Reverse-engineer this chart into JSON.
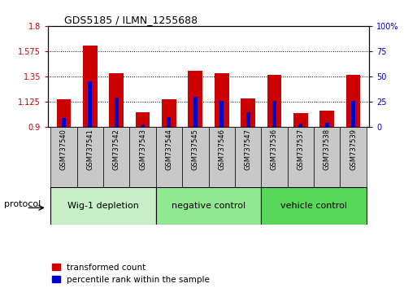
{
  "title": "GDS5185 / ILMN_1255688",
  "samples": [
    "GSM737540",
    "GSM737541",
    "GSM737542",
    "GSM737543",
    "GSM737544",
    "GSM737545",
    "GSM737546",
    "GSM737547",
    "GSM737536",
    "GSM737537",
    "GSM737538",
    "GSM737539"
  ],
  "red_values": [
    1.145,
    1.625,
    1.38,
    1.03,
    1.145,
    1.4,
    1.375,
    1.155,
    1.36,
    1.025,
    1.04,
    1.36
  ],
  "blue_values": [
    0.09,
    0.45,
    0.29,
    0.02,
    0.095,
    0.3,
    0.26,
    0.14,
    0.26,
    0.03,
    0.04,
    0.26
  ],
  "ylim_left": [
    0.9,
    1.8
  ],
  "ylim_right": [
    0,
    100
  ],
  "yticks_left": [
    0.9,
    1.125,
    1.35,
    1.575,
    1.8
  ],
  "yticks_right": [
    0,
    25,
    50,
    75,
    100
  ],
  "ytick_labels_left": [
    "0.9",
    "1.125",
    "1.35",
    "1.575",
    "1.8"
  ],
  "ytick_labels_right": [
    "0",
    "25",
    "50",
    "75",
    "100%"
  ],
  "groups": [
    {
      "label": "Wig-1 depletion",
      "start": 0,
      "end": 4,
      "color": "#c8f0c8"
    },
    {
      "label": "negative control",
      "start": 4,
      "end": 8,
      "color": "#90e890"
    },
    {
      "label": "vehicle control",
      "start": 8,
      "end": 12,
      "color": "#58d858"
    }
  ],
  "bar_width": 0.55,
  "bar_bottom": 0.9,
  "red_color": "#cc0000",
  "blue_color": "#0000cc",
  "bg_color": "#ffffff",
  "legend_red_label": "transformed count",
  "legend_blue_label": "percentile rank within the sample",
  "protocol_label": "protocol",
  "tick_label_color_left": "#cc0000",
  "tick_label_color_right": "#0000cc",
  "sample_bg_color": "#c8c8c8"
}
